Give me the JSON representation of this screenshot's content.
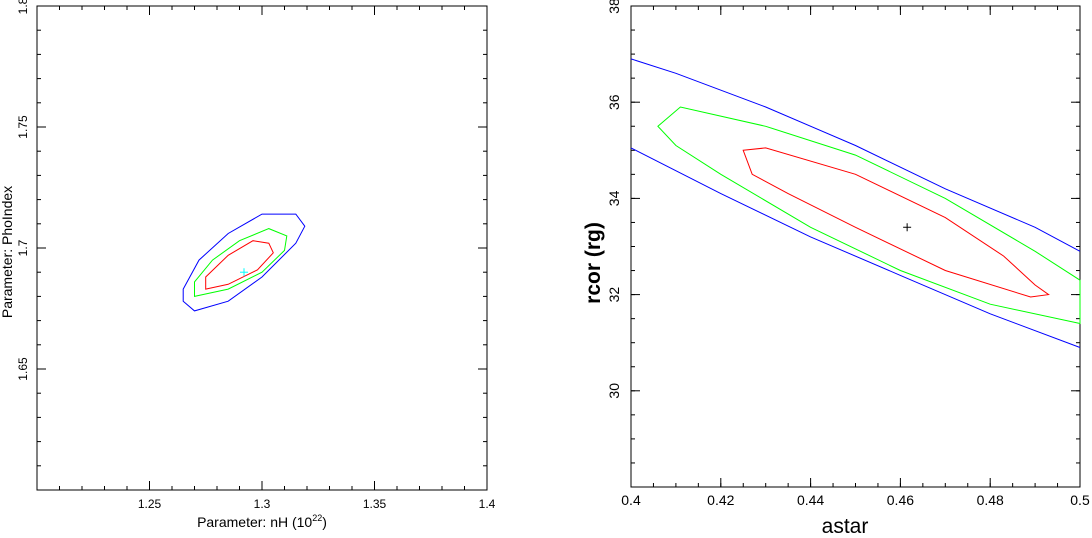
{
  "chart_data": [
    {
      "type": "contour",
      "title": "",
      "xlabel": "Parameter: nH (10",
      "xlabel_sup": "22",
      "xlabel_end": ")",
      "ylabel": "Parameter: PhoIndex",
      "xlim": [
        1.2,
        1.4
      ],
      "ylim": [
        1.6,
        1.8
      ],
      "xticks": [
        1.25,
        1.3,
        1.35,
        1.4
      ],
      "xtick_labels": [
        "1.25",
        "1.3",
        "1.35",
        "1.4"
      ],
      "yticks": [
        1.65,
        1.7,
        1.75,
        1.8
      ],
      "ytick_labels": [
        "1.65",
        "1.7",
        "1.75",
        "1.8"
      ],
      "best_fit": {
        "x": 1.292,
        "y": 1.69,
        "color": "#00ffff"
      },
      "contours": [
        {
          "level": "68%",
          "color": "#ff0000",
          "points": [
            [
              1.275,
              1.683
            ],
            [
              1.285,
              1.685
            ],
            [
              1.298,
              1.691
            ],
            [
              1.305,
              1.698
            ],
            [
              1.303,
              1.702
            ],
            [
              1.296,
              1.703
            ],
            [
              1.285,
              1.697
            ],
            [
              1.275,
              1.688
            ]
          ]
        },
        {
          "level": "90%",
          "color": "#00ff00",
          "points": [
            [
              1.27,
              1.68
            ],
            [
              1.285,
              1.683
            ],
            [
              1.3,
              1.69
            ],
            [
              1.31,
              1.699
            ],
            [
              1.311,
              1.705
            ],
            [
              1.303,
              1.708
            ],
            [
              1.29,
              1.703
            ],
            [
              1.278,
              1.695
            ],
            [
              1.27,
              1.686
            ]
          ]
        },
        {
          "level": "99%",
          "color": "#0000ff",
          "points": [
            [
              1.265,
              1.678
            ],
            [
              1.27,
              1.674
            ],
            [
              1.285,
              1.678
            ],
            [
              1.3,
              1.688
            ],
            [
              1.315,
              1.702
            ],
            [
              1.319,
              1.709
            ],
            [
              1.315,
              1.714
            ],
            [
              1.3,
              1.714
            ],
            [
              1.285,
              1.706
            ],
            [
              1.272,
              1.695
            ],
            [
              1.265,
              1.683
            ]
          ]
        }
      ]
    },
    {
      "type": "contour",
      "title": "",
      "xlabel": "astar",
      "ylabel": "rcor (rg)",
      "xlim": [
        0.4,
        0.5
      ],
      "ylim": [
        28,
        38
      ],
      "xticks": [
        0.4,
        0.42,
        0.44,
        0.46,
        0.48,
        0.5
      ],
      "xtick_labels": [
        "0.4",
        "0.42",
        "0.44",
        "0.46",
        "0.48",
        "0.5"
      ],
      "yticks": [
        30,
        32,
        34,
        36,
        38
      ],
      "ytick_labels": [
        "30",
        "32",
        "34",
        "36",
        "38"
      ],
      "best_fit": {
        "x": 0.4615,
        "y": 33.4,
        "color": "#000000"
      },
      "contours": [
        {
          "level": "68%",
          "color": "#ff0000",
          "points": [
            [
              0.425,
              35.0
            ],
            [
              0.43,
              35.05
            ],
            [
              0.45,
              34.5
            ],
            [
              0.47,
              33.6
            ],
            [
              0.483,
              32.8
            ],
            [
              0.49,
              32.2
            ],
            [
              0.493,
              32.0
            ],
            [
              0.489,
              31.95
            ],
            [
              0.47,
              32.5
            ],
            [
              0.45,
              33.4
            ],
            [
              0.435,
              34.1
            ],
            [
              0.427,
              34.5
            ]
          ]
        },
        {
          "level": "90%",
          "color": "#00ff00",
          "points": [
            [
              0.406,
              35.5
            ],
            [
              0.411,
              35.9
            ],
            [
              0.43,
              35.5
            ],
            [
              0.45,
              34.9
            ],
            [
              0.47,
              34.0
            ],
            [
              0.49,
              32.9
            ],
            [
              0.5,
              32.3
            ],
            [
              0.5,
              31.4
            ],
            [
              0.48,
              31.8
            ],
            [
              0.46,
              32.5
            ],
            [
              0.44,
              33.4
            ],
            [
              0.42,
              34.5
            ],
            [
              0.41,
              35.1
            ]
          ]
        },
        {
          "level": "99%",
          "color": "#0000ff",
          "points_upper": [
            [
              0.4,
              36.9
            ],
            [
              0.41,
              36.6
            ],
            [
              0.43,
              35.9
            ],
            [
              0.45,
              35.1
            ],
            [
              0.47,
              34.2
            ],
            [
              0.49,
              33.4
            ],
            [
              0.5,
              32.9
            ]
          ],
          "points_lower": [
            [
              0.4,
              35.05
            ],
            [
              0.42,
              34.1
            ],
            [
              0.44,
              33.2
            ],
            [
              0.46,
              32.4
            ],
            [
              0.48,
              31.6
            ],
            [
              0.5,
              30.9
            ]
          ]
        }
      ]
    }
  ]
}
